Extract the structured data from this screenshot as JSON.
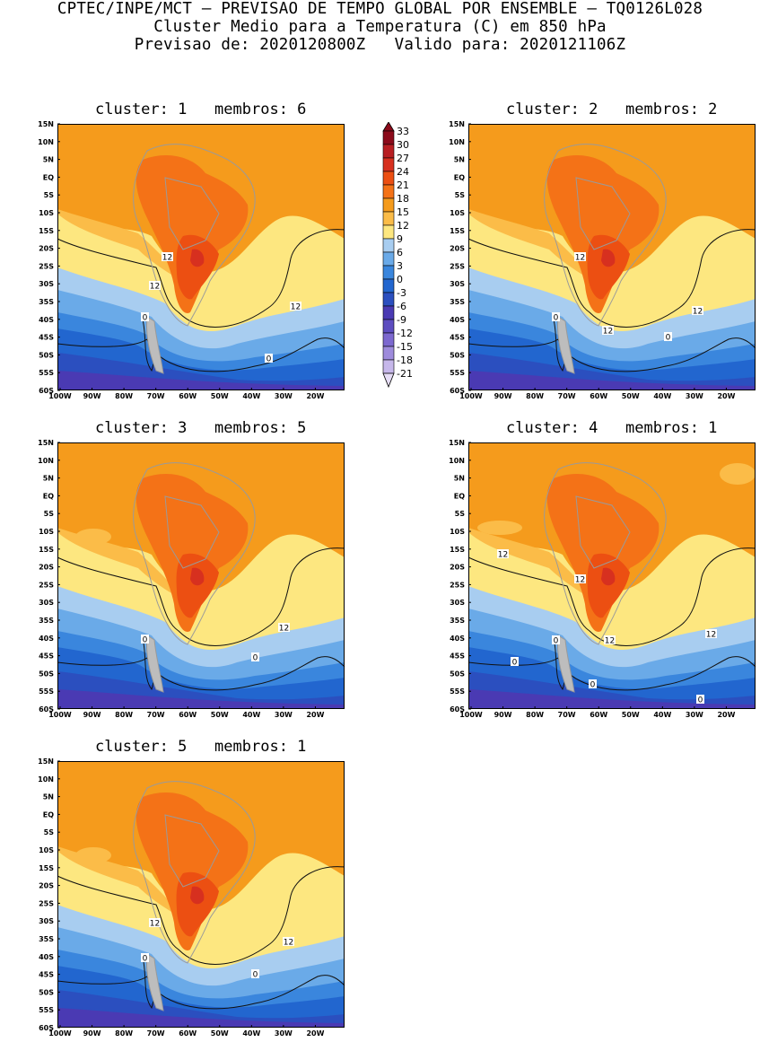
{
  "header": {
    "line1": "CPTEC/INPE/MCT — PREVISAO DE TEMPO GLOBAL POR ENSEMBLE — TQ0126L028",
    "line2": "Cluster Medio para a Temperatura (C) em 850 hPa",
    "line3": "Previsao de: 2020120800Z   Valido para: 2020121106Z"
  },
  "axes": {
    "lat_ticks": [
      "15N",
      "10N",
      "5N",
      "EQ",
      "5S",
      "10S",
      "15S",
      "20S",
      "25S",
      "30S",
      "35S",
      "40S",
      "45S",
      "50S",
      "55S",
      "60S"
    ],
    "lon_ticks": [
      "100W",
      "90W",
      "80W",
      "70W",
      "60W",
      "50W",
      "40W",
      "30W",
      "20W"
    ]
  },
  "colorbar": {
    "levels": [
      "33",
      "30",
      "27",
      "24",
      "21",
      "18",
      "15",
      "12",
      "9",
      "6",
      "3",
      "0",
      "-3",
      "-6",
      "-9",
      "-12",
      "-15",
      "-18",
      "-21"
    ],
    "colors": [
      "#8b0a1a",
      "#b81e22",
      "#d7301f",
      "#ec4f12",
      "#f47217",
      "#f59b1c",
      "#fbbc48",
      "#fde780",
      "#a8cdf0",
      "#6aaae8",
      "#3a86dd",
      "#2266cf",
      "#2b4fbf",
      "#4a3ab3",
      "#5d4dc0",
      "#7c68cf",
      "#9e8bdc",
      "#c6b7ea",
      "#e6ddf6"
    ]
  },
  "panels": [
    {
      "title": "cluster: 1   membros: 6",
      "labels": [
        {
          "t": "12"
        },
        {
          "t": "12"
        },
        {
          "t": "12"
        },
        {
          "t": "0"
        },
        {
          "t": "0"
        }
      ]
    },
    {
      "title": "cluster: 2   membros: 2",
      "labels": [
        {
          "t": "12"
        },
        {
          "t": "12"
        },
        {
          "t": "12"
        },
        {
          "t": "0"
        },
        {
          "t": "0"
        }
      ]
    },
    {
      "title": "cluster: 3   membros: 5",
      "labels": [
        {
          "t": "12"
        },
        {
          "t": "0"
        },
        {
          "t": "0"
        }
      ]
    },
    {
      "title": "cluster: 4   membros: 1",
      "labels": [
        {
          "t": "12"
        },
        {
          "t": "12"
        },
        {
          "t": "12"
        },
        {
          "t": "12"
        },
        {
          "t": "0"
        },
        {
          "t": "0"
        },
        {
          "t": "0"
        },
        {
          "t": "0"
        }
      ]
    },
    {
      "title": "cluster: 5   membros: 1",
      "labels": [
        {
          "t": "12"
        },
        {
          "t": "12"
        },
        {
          "t": "0"
        },
        {
          "t": "0"
        }
      ]
    }
  ]
}
